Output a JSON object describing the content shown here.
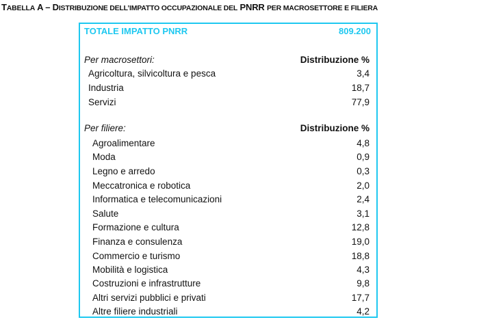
{
  "caption": {
    "prefix": "T",
    "prefix_sc": "ABELLA",
    "letter": " A – D",
    "title_sc": "ISTRIBUZIONE DELL’IMPATTO OCCUPAZIONALE DEL",
    "bold": " PNRR ",
    "tail_sc": "PER MACROSETTORE E FILIERA"
  },
  "total": {
    "label": "TOTALE IMPATTO PNRR",
    "value": "809.200"
  },
  "macro": {
    "heading": "Per macrosettori:",
    "column": "Distribuzione %",
    "rows": [
      {
        "label": "Agricoltura, silvicoltura e pesca",
        "value": "3,4"
      },
      {
        "label": "Industria",
        "value": "18,7"
      },
      {
        "label": "Servizi",
        "value": "77,9"
      }
    ]
  },
  "filiere": {
    "heading": "Per filiere:",
    "column": "Distribuzione %",
    "rows": [
      {
        "label": "Agroalimentare",
        "value": "4,8"
      },
      {
        "label": "Moda",
        "value": "0,9"
      },
      {
        "label": "Legno e arredo",
        "value": "0,3"
      },
      {
        "label": "Meccatronica e robotica",
        "value": "2,0"
      },
      {
        "label": "Informatica e telecomunicazioni",
        "value": "2,4"
      },
      {
        "label": "Salute",
        "value": "3,1"
      },
      {
        "label": "Formazione e cultura",
        "value": "12,8"
      },
      {
        "label": "Finanza e consulenza",
        "value": "19,0"
      },
      {
        "label": "Commercio e turismo",
        "value": "18,8"
      },
      {
        "label": "Mobilità e logistica",
        "value": "4,3"
      },
      {
        "label": "Costruzioni e infrastrutture",
        "value": "9,8"
      },
      {
        "label": "Altri servizi pubblici e privati",
        "value": "17,7"
      },
      {
        "label": "Altre filiere industriali",
        "value": "4,2"
      }
    ]
  },
  "colors": {
    "accent": "#1ec8f0",
    "text": "#111111"
  }
}
